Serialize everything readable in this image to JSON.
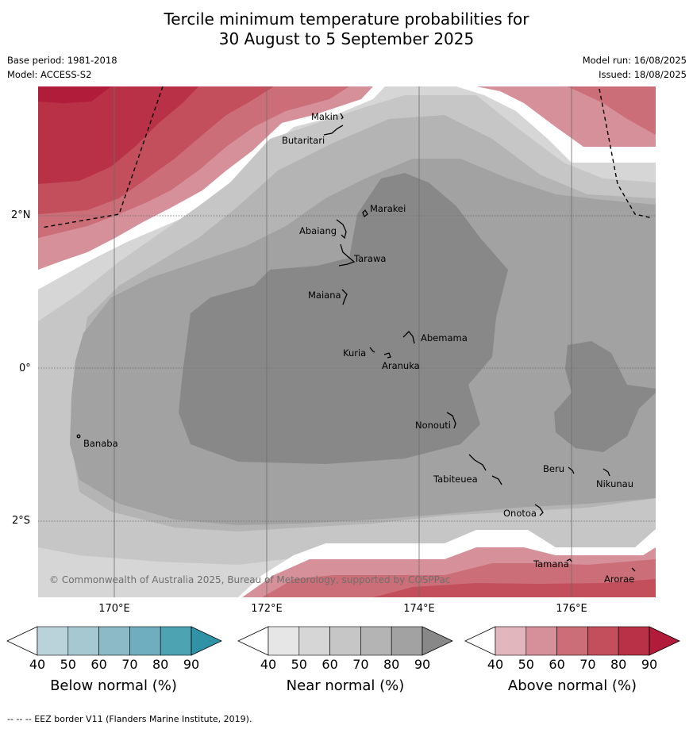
{
  "title": {
    "line1": "Tercile minimum temperature probabilities for",
    "line2": "30 August to 5 September 2025"
  },
  "meta": {
    "base_period": "Base period: 1981-2018",
    "model": "Model: ACCESS-S2",
    "model_run": "Model run: 16/08/2025",
    "issued": "Issued: 18/08/2025"
  },
  "map": {
    "latitude_ticks": [
      "2°N",
      "0°",
      "2°S"
    ],
    "longitude_ticks": [
      "170°E",
      "172°E",
      "174°E",
      "176°E"
    ],
    "places": [
      {
        "name": "Makin",
        "lon": 173.0,
        "lat": 3.35
      },
      {
        "name": "Butaritari",
        "lon": 172.8,
        "lat": 3.1
      },
      {
        "name": "Marakei",
        "lon": 173.3,
        "lat": 2.0
      },
      {
        "name": "Abaiang",
        "lon": 172.95,
        "lat": 1.8
      },
      {
        "name": "Tarawa",
        "lon": 172.95,
        "lat": 1.4
      },
      {
        "name": "Maiana",
        "lon": 173.0,
        "lat": 0.92
      },
      {
        "name": "Abemama",
        "lon": 173.85,
        "lat": 0.4
      },
      {
        "name": "Kuria",
        "lon": 173.4,
        "lat": 0.23
      },
      {
        "name": "Aranuka",
        "lon": 173.6,
        "lat": 0.17
      },
      {
        "name": "Nonouti",
        "lon": 174.4,
        "lat": -0.65
      },
      {
        "name": "Banaba",
        "lon": 169.55,
        "lat": -0.85
      },
      {
        "name": "Tabiteuea",
        "lon": 174.8,
        "lat": -1.4
      },
      {
        "name": "Beru",
        "lon": 176.0,
        "lat": -1.33
      },
      {
        "name": "Nikunau",
        "lon": 176.45,
        "lat": -1.37
      },
      {
        "name": "Onotoa",
        "lon": 175.55,
        "lat": -1.8
      },
      {
        "name": "Tamana",
        "lon": 175.98,
        "lat": -2.5
      },
      {
        "name": "Arorae",
        "lon": 176.82,
        "lat": -2.63
      }
    ],
    "copyright": "© Commonwealth of Australia 2025, Bureau of Meteorology, supported by COSPPac"
  },
  "colorbars": [
    {
      "label": "Below normal (%)",
      "ticks": [
        "40",
        "50",
        "60",
        "70",
        "80",
        "90"
      ],
      "colors": [
        "#ffffff",
        "#bad2da",
        "#a6c8d0",
        "#8cbac6",
        "#6faebf",
        "#4ea3b3",
        "#2f93a5"
      ]
    },
    {
      "label": "Near normal (%)",
      "ticks": [
        "40",
        "50",
        "60",
        "70",
        "80",
        "90"
      ],
      "colors": [
        "#ffffff",
        "#e6e6e6",
        "#d6d6d6",
        "#c6c6c6",
        "#b4b4b4",
        "#a2a2a2",
        "#888888"
      ]
    },
    {
      "label": "Above normal (%)",
      "ticks": [
        "40",
        "50",
        "60",
        "70",
        "80",
        "90"
      ],
      "colors": [
        "#ffffff",
        "#e2b6bd",
        "#d6909a",
        "#cc6e78",
        "#c34e5c",
        "#b83146",
        "#b01c3a"
      ]
    }
  ],
  "footnote": "--  --  -- EEZ border V11 (Flanders Marine Institute, 2019)."
}
